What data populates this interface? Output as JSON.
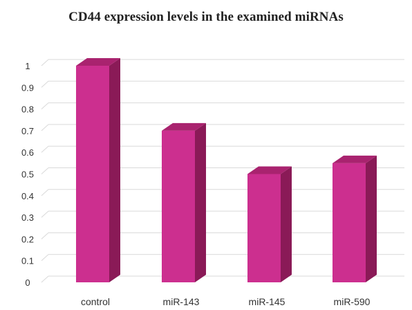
{
  "chart_data": {
    "type": "bar",
    "style": "3d-column",
    "title": "CD44 expression levels in the examined miRNAs",
    "xlabel": "",
    "ylabel": "",
    "categories": [
      "control",
      "miR-143",
      "miR-145",
      "miR-590"
    ],
    "values": [
      1.0,
      0.7,
      0.5,
      0.55
    ],
    "ylim": [
      0,
      1
    ],
    "yticks": [
      "0",
      "0.1",
      "0.2",
      "0.3",
      "0.4",
      "0.5",
      "0.6",
      "0.7",
      "0.8",
      "0.9",
      "1"
    ],
    "grid": true,
    "legend": "none"
  },
  "colors": {
    "bar_front": "#cc2f8f",
    "bar_side": "#8a1a57",
    "bar_top": "#a9236f",
    "gridline": "#d9d9d9",
    "axis_text": "#333333"
  }
}
